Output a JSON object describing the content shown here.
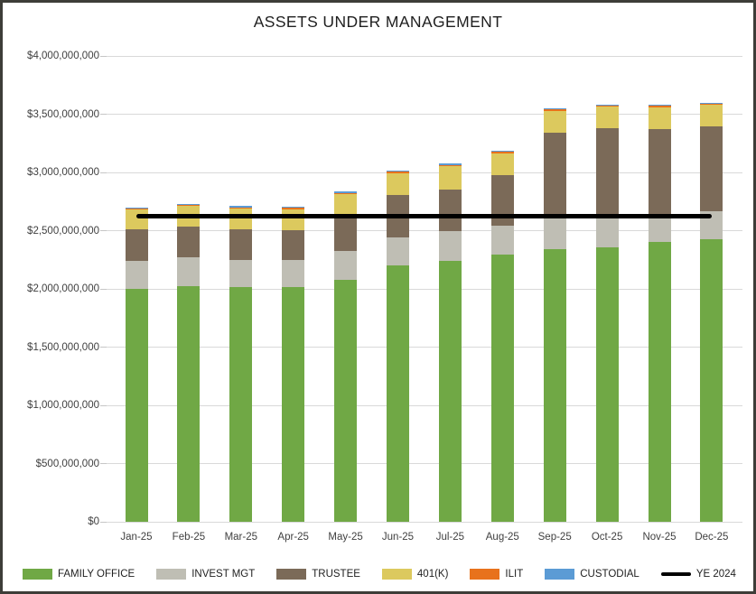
{
  "title": "ASSETS UNDER MANAGEMENT",
  "chart_data": {
    "type": "bar",
    "subtype": "stacked-column-with-line-overlay",
    "title": "ASSETS UNDER MANAGEMENT",
    "xlabel": "",
    "ylabel": "",
    "grid": true,
    "legend_position": "bottom",
    "ylim": [
      0,
      4000000000
    ],
    "y_tick_step": 500000000,
    "y_ticks": [
      {
        "value": 0,
        "label": "$0"
      },
      {
        "value": 500000000,
        "label": "$500,000,000"
      },
      {
        "value": 1000000000,
        "label": "$1,000,000,000"
      },
      {
        "value": 1500000000,
        "label": "$1,500,000,000"
      },
      {
        "value": 2000000000,
        "label": "$2,000,000,000"
      },
      {
        "value": 2500000000,
        "label": "$2,500,000,000"
      },
      {
        "value": 3000000000,
        "label": "$3,000,000,000"
      },
      {
        "value": 3500000000,
        "label": "$3,500,000,000"
      },
      {
        "value": 4000000000,
        "label": "$4,000,000,000"
      }
    ],
    "categories": [
      "Jan-25",
      "Feb-25",
      "Mar-25",
      "Apr-25",
      "May-25",
      "Jun-25",
      "Jul-25",
      "Aug-25",
      "Sep-25",
      "Oct-25",
      "Nov-25",
      "Dec-25"
    ],
    "series": [
      {
        "name": "FAMILY OFFICE",
        "slug": "family-office",
        "color": "#70A845",
        "values": [
          2000000000,
          2025000000,
          2015000000,
          2015000000,
          2080000000,
          2205000000,
          2240000000,
          2295000000,
          2345000000,
          2360000000,
          2400000000,
          2430000000
        ]
      },
      {
        "name": "INVEST MGT",
        "slug": "invest-mgt",
        "color": "#BFBEB4",
        "values": [
          240000000,
          245000000,
          235000000,
          230000000,
          245000000,
          240000000,
          255000000,
          250000000,
          275000000,
          275000000,
          240000000,
          235000000
        ]
      },
      {
        "name": "TRUSTEE",
        "slug": "trustee",
        "color": "#7B6A58",
        "values": [
          275000000,
          265000000,
          265000000,
          260000000,
          320000000,
          360000000,
          360000000,
          430000000,
          720000000,
          745000000,
          735000000,
          730000000
        ]
      },
      {
        "name": "401(K)",
        "slug": "401k",
        "color": "#DCC95E",
        "values": [
          165000000,
          175000000,
          175000000,
          180000000,
          170000000,
          190000000,
          200000000,
          190000000,
          190000000,
          185000000,
          185000000,
          185000000
        ]
      },
      {
        "name": "ILIT",
        "slug": "ilit",
        "color": "#E8721C",
        "values": [
          10000000,
          10000000,
          10000000,
          10000000,
          10000000,
          10000000,
          10000000,
          10000000,
          10000000,
          10000000,
          10000000,
          10000000
        ]
      },
      {
        "name": "CUSTODIAL",
        "slug": "custodial",
        "color": "#5B9BD5",
        "values": [
          10000000,
          10000000,
          10000000,
          10000000,
          10000000,
          10000000,
          10000000,
          10000000,
          10000000,
          10000000,
          10000000,
          10000000
        ]
      }
    ],
    "line_series": {
      "name": "YE 2024",
      "slug": "ye-2024",
      "color": "#000000",
      "value": 2625000000
    },
    "legend": [
      {
        "label": "FAMILY OFFICE",
        "slug": "family-office",
        "type": "box",
        "color": "#70A845"
      },
      {
        "label": "INVEST MGT",
        "slug": "invest-mgt",
        "type": "box",
        "color": "#BFBEB4"
      },
      {
        "label": "TRUSTEE",
        "slug": "trustee",
        "type": "box",
        "color": "#7B6A58"
      },
      {
        "label": "401(K)",
        "slug": "401k",
        "type": "box",
        "color": "#DCC95E"
      },
      {
        "label": "ILIT",
        "slug": "ilit",
        "type": "box",
        "color": "#E8721C"
      },
      {
        "label": "CUSTODIAL",
        "slug": "custodial",
        "type": "box",
        "color": "#5B9BD5"
      },
      {
        "label": "YE 2024",
        "slug": "ye-2024",
        "type": "line",
        "color": "#000000"
      }
    ],
    "colors": {
      "gridline": "#d9d9d9",
      "tick": "#c6c6c6",
      "axis_text": "#404040",
      "title_text": "#1f1f1f",
      "frame_border": "#3d3d38",
      "background": "#ffffff"
    }
  }
}
